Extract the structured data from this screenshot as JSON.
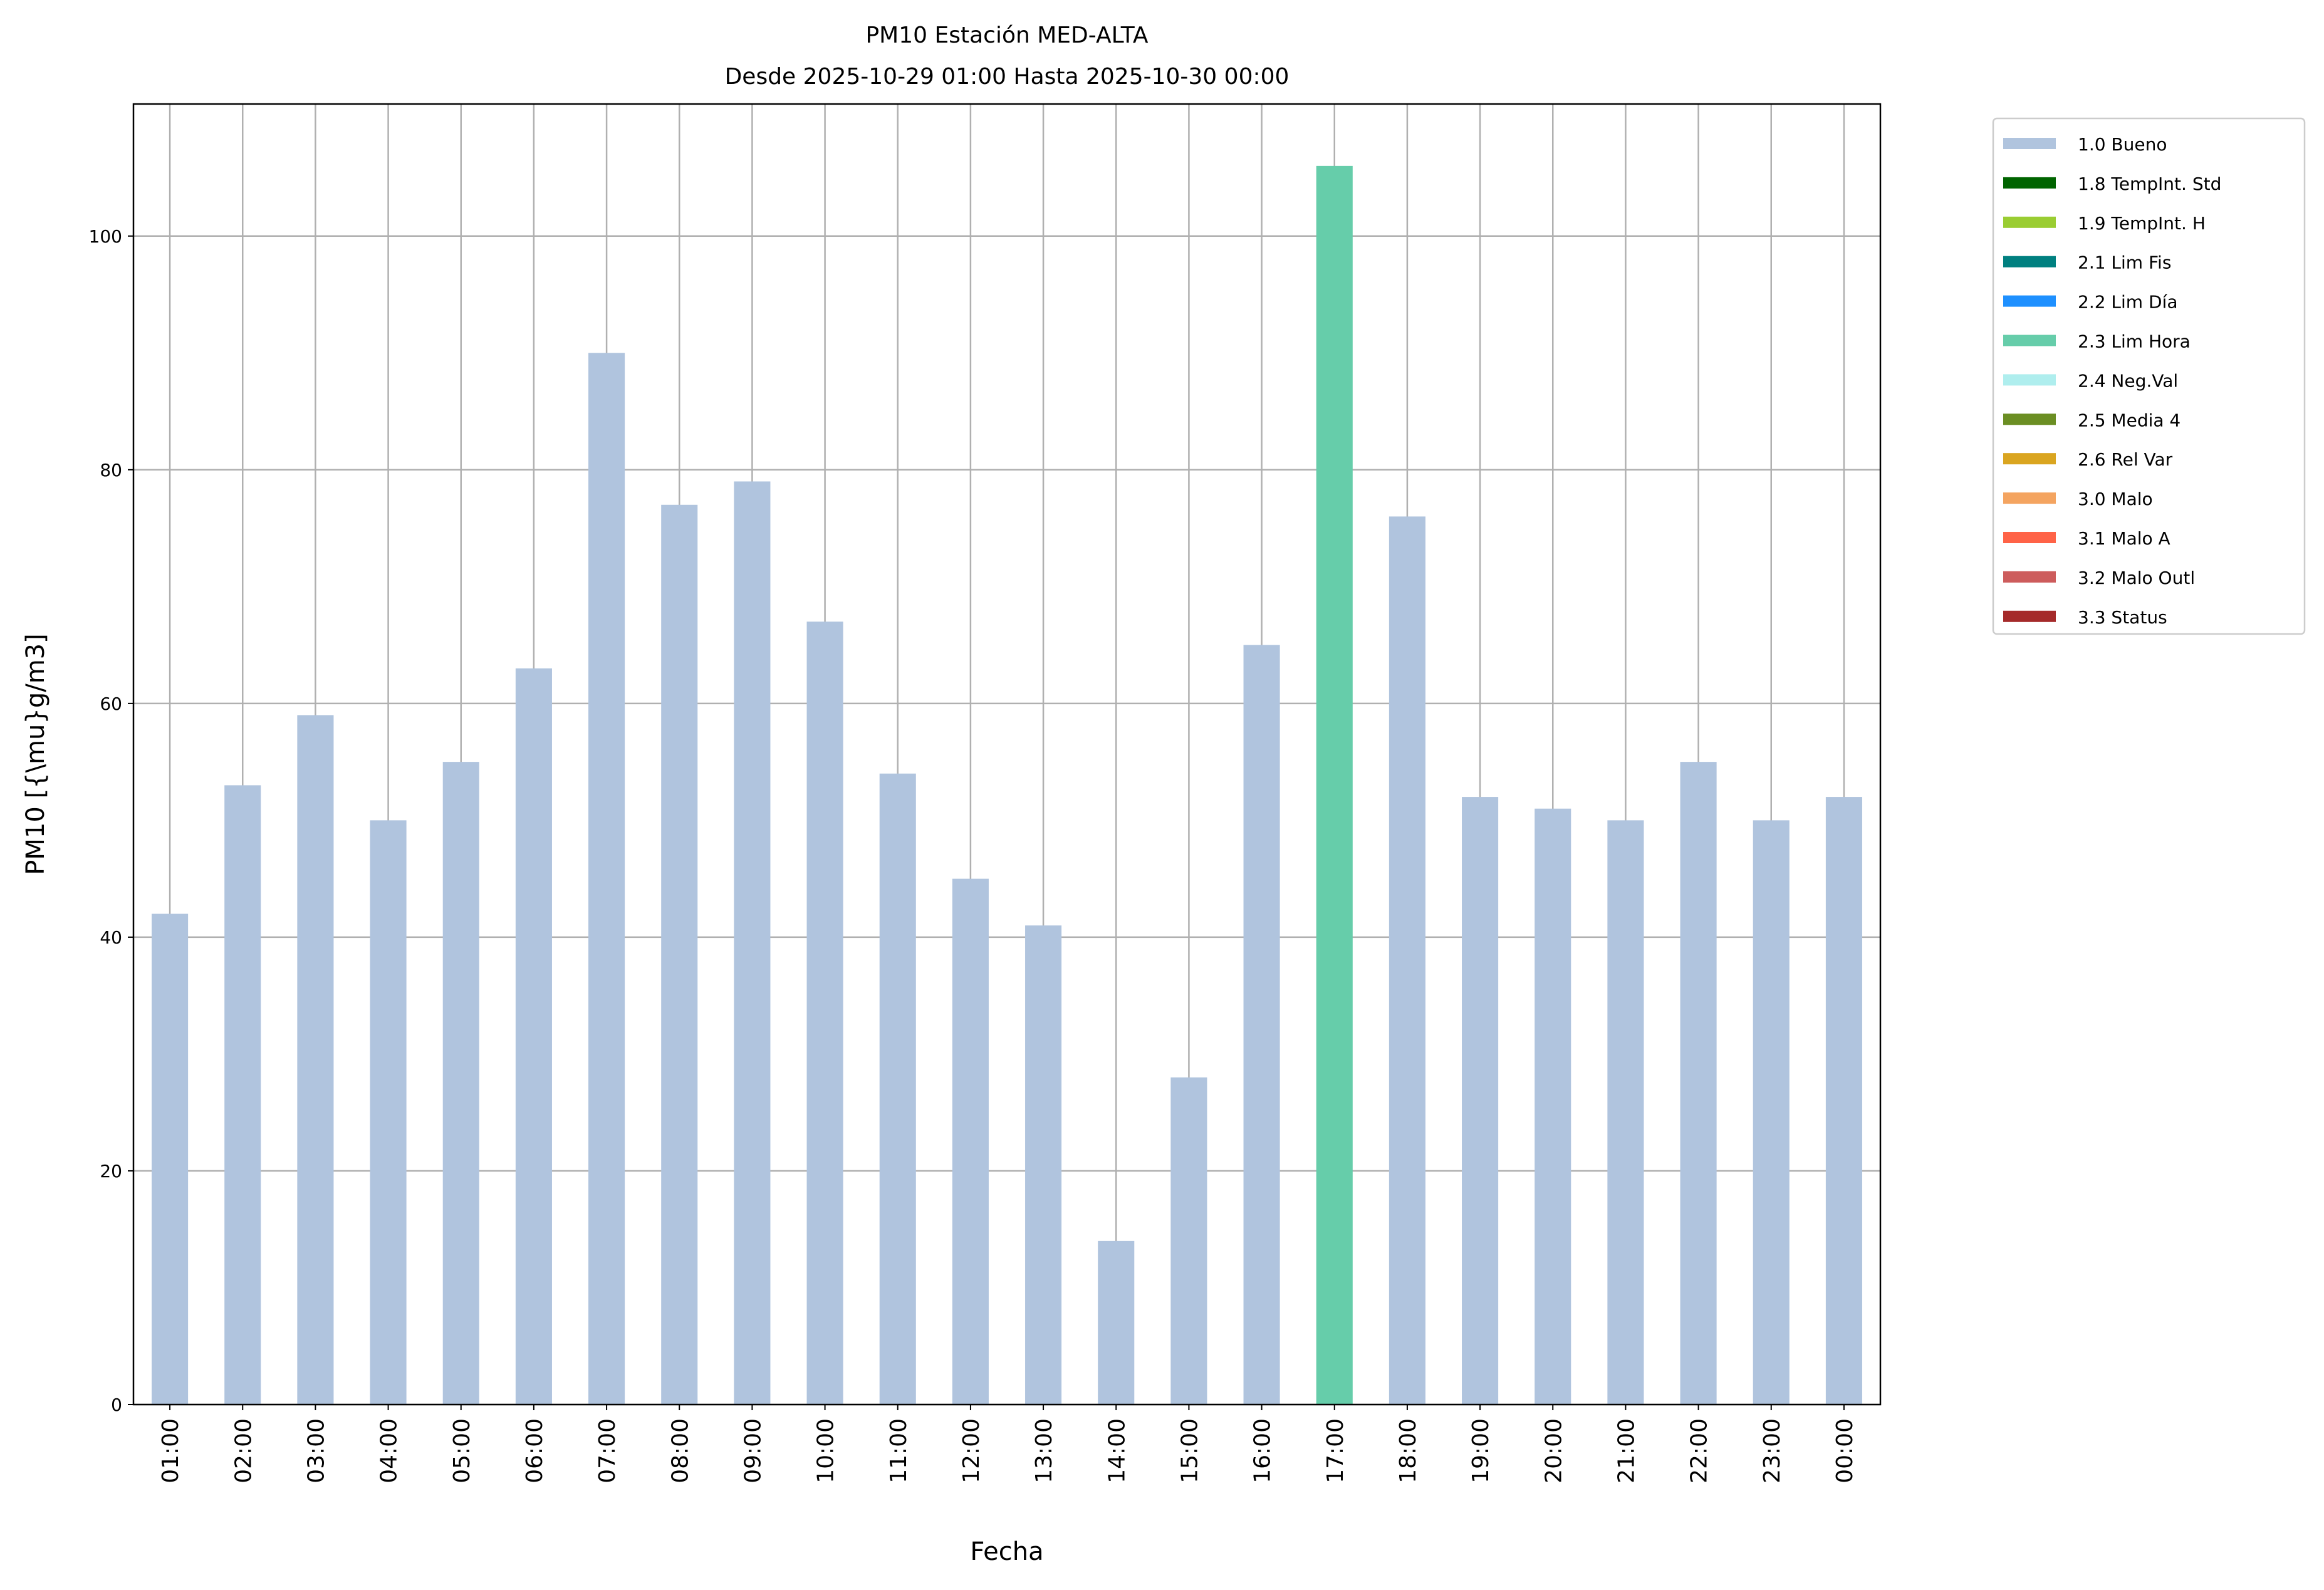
{
  "chart_data": {
    "type": "bar",
    "title": "PM10 Estación MED-ALTA",
    "subtitle": "Desde 2025-10-29 01:00 Hasta 2025-10-30 00:00",
    "xlabel": "Fecha",
    "ylabel": "PM10 [{\\mu}g/m3]",
    "ylim": [
      0,
      111.3
    ],
    "yticks": [
      0,
      20,
      40,
      60,
      80,
      100
    ],
    "grid": true,
    "legend_placement": "outside-top-right",
    "categories": [
      "01:00",
      "02:00",
      "03:00",
      "04:00",
      "05:00",
      "06:00",
      "07:00",
      "08:00",
      "09:00",
      "10:00",
      "11:00",
      "12:00",
      "13:00",
      "14:00",
      "15:00",
      "16:00",
      "17:00",
      "18:00",
      "19:00",
      "20:00",
      "21:00",
      "22:00",
      "23:00",
      "00:00"
    ],
    "values": [
      42,
      53,
      59,
      50,
      55,
      63,
      90,
      77,
      79,
      67,
      54,
      45,
      41,
      14,
      28,
      65,
      106,
      76,
      52,
      51,
      50,
      55,
      50,
      52
    ],
    "flags": [
      "1.0 Bueno",
      "1.0 Bueno",
      "1.0 Bueno",
      "1.0 Bueno",
      "1.0 Bueno",
      "1.0 Bueno",
      "1.0 Bueno",
      "1.0 Bueno",
      "1.0 Bueno",
      "1.0 Bueno",
      "1.0 Bueno",
      "1.0 Bueno",
      "1.0 Bueno",
      "1.0 Bueno",
      "1.0 Bueno",
      "1.0 Bueno",
      "2.3 Lim Hora",
      "1.0 Bueno",
      "1.0 Bueno",
      "1.0 Bueno",
      "1.0 Bueno",
      "1.0 Bueno",
      "1.0 Bueno",
      "1.0 Bueno"
    ],
    "legend": [
      {
        "name": "1.0 Bueno",
        "color": "#b0c4de"
      },
      {
        "name": "1.8 TempInt. Std",
        "color": "#006400"
      },
      {
        "name": "1.9 TempInt. H",
        "color": "#9acd32"
      },
      {
        "name": "2.1 Lim Fis",
        "color": "#008080"
      },
      {
        "name": "2.2 Lim Día",
        "color": "#1e90ff"
      },
      {
        "name": "2.3 Lim Hora",
        "color": "#66cdaa"
      },
      {
        "name": "2.4 Neg.Val",
        "color": "#afeeee"
      },
      {
        "name": "2.5 Media 4",
        "color": "#6b8e23"
      },
      {
        "name": "2.6 Rel Var",
        "color": "#daa520"
      },
      {
        "name": "3.0 Malo",
        "color": "#f4a460"
      },
      {
        "name": "3.1 Malo A",
        "color": "#ff6347"
      },
      {
        "name": "3.2 Malo Outl",
        "color": "#cd5c5c"
      },
      {
        "name": "3.3 Status",
        "color": "#a52a2a"
      }
    ]
  }
}
